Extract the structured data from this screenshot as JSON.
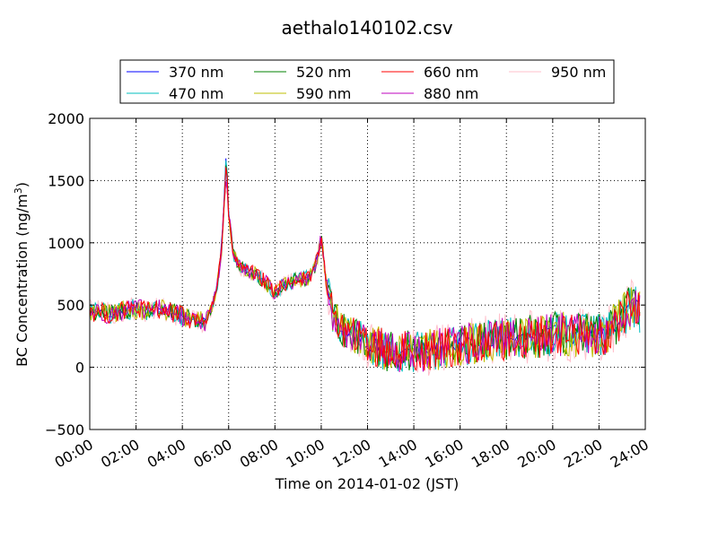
{
  "chart_data": {
    "type": "line",
    "title": "aethalo140102.csv",
    "xlabel": "Time on 2014-01-02 (JST)",
    "ylabel_text": "BC Concentration (ng/m",
    "ylabel_superscript": "3",
    "ylabel_suffix": ")",
    "x_unit": "hour of day",
    "xlim": [
      0,
      24
    ],
    "ylim": [
      -500,
      2000
    ],
    "x_ticks": [
      0,
      2,
      4,
      6,
      8,
      10,
      12,
      14,
      16,
      18,
      20,
      22,
      24
    ],
    "x_tick_labels": [
      "00:00",
      "02:00",
      "04:00",
      "06:00",
      "08:00",
      "10:00",
      "12:00",
      "14:00",
      "16:00",
      "18:00",
      "20:00",
      "22:00",
      "24:00"
    ],
    "y_ticks": [
      -500,
      0,
      500,
      1000,
      1500,
      2000
    ],
    "y_tick_labels": [
      "−500",
      "0",
      "500",
      "1000",
      "1500",
      "2000"
    ],
    "grid": true,
    "legend_placement": "top-center, 4 columns, above plot",
    "series": [
      {
        "name": "370 nm",
        "color": "#0000ff"
      },
      {
        "name": "470 nm",
        "color": "#00bfbf"
      },
      {
        "name": "520 nm",
        "color": "#008000"
      },
      {
        "name": "590 nm",
        "color": "#bfbf00"
      },
      {
        "name": "660 nm",
        "color": "#ff0000"
      },
      {
        "name": "880 nm",
        "color": "#bf00bf"
      },
      {
        "name": "950 nm",
        "color": "#ffc0cb"
      }
    ],
    "baseline_trend": {
      "x": [
        0,
        0.5,
        1,
        1.5,
        2,
        2.5,
        3,
        3.5,
        4,
        4.5,
        5,
        5.3,
        5.5,
        5.7,
        5.8,
        5.9,
        6,
        6.2,
        6.5,
        7,
        7.5,
        8,
        8.5,
        9,
        9.5,
        9.8,
        10,
        10.2,
        10.5,
        11,
        11.5,
        12,
        13,
        14,
        15,
        16,
        17,
        18,
        19,
        20,
        21,
        22,
        22.5,
        23,
        23.5,
        23.8
      ],
      "y": [
        450,
        440,
        420,
        460,
        470,
        450,
        470,
        440,
        410,
        380,
        370,
        500,
        650,
        950,
        1300,
        1650,
        1250,
        900,
        800,
        760,
        700,
        600,
        680,
        700,
        720,
        850,
        1050,
        700,
        400,
        300,
        250,
        200,
        120,
        130,
        140,
        180,
        200,
        220,
        240,
        270,
        260,
        250,
        300,
        420,
        500,
        450
      ]
    },
    "series_peak_at_6h": [
      1775,
      1780,
      1660,
      1560,
      1640,
      1560,
      1390
    ]
  }
}
